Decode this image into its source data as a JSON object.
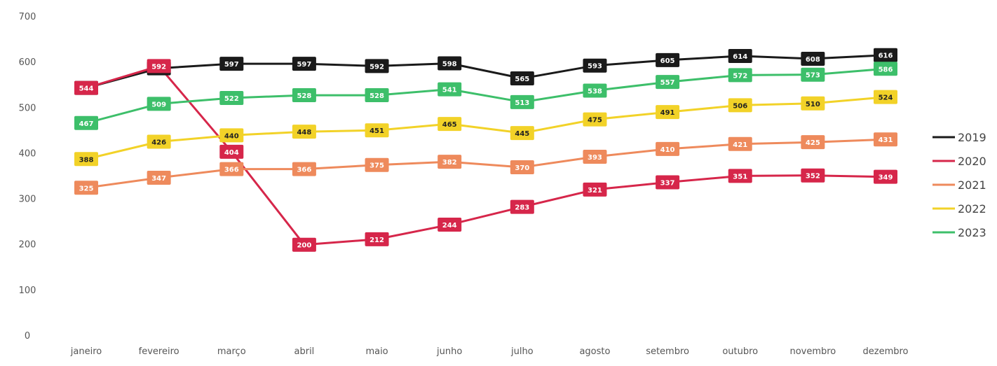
{
  "chart_data": {
    "type": "line",
    "title": "",
    "xlabel": "",
    "ylabel": "",
    "ylim": [
      0,
      700
    ],
    "yticks": [
      0,
      100,
      200,
      300,
      400,
      500,
      600,
      700
    ],
    "grid": false,
    "legend_position": "right",
    "categories": [
      "janeiro",
      "fevereiro",
      "março",
      "abril",
      "maio",
      "junho",
      "julho",
      "agosto",
      "setembro",
      "outubro",
      "novembro",
      "dezembro"
    ],
    "series": [
      {
        "name": "2019",
        "color": "#1a1a1a",
        "label_text_color": "#ffffff",
        "values": [
          544,
          587,
          597,
          597,
          592,
          598,
          565,
          593,
          605,
          614,
          608,
          616
        ]
      },
      {
        "name": "2020",
        "color": "#d6264a",
        "label_text_color": "#ffffff",
        "values": [
          544,
          592,
          404,
          200,
          212,
          244,
          283,
          321,
          337,
          351,
          352,
          349
        ]
      },
      {
        "name": "2021",
        "color": "#ee8a5c",
        "label_text_color": "#ffffff",
        "values": [
          325,
          347,
          366,
          366,
          375,
          382,
          370,
          393,
          410,
          421,
          425,
          431
        ]
      },
      {
        "name": "2022",
        "color": "#f2d228",
        "label_text_color": "#222222",
        "values": [
          388,
          426,
          440,
          448,
          451,
          465,
          445,
          475,
          491,
          506,
          510,
          524
        ]
      },
      {
        "name": "2023",
        "color": "#3dbf6a",
        "label_text_color": "#ffffff",
        "values": [
          467,
          509,
          522,
          528,
          528,
          541,
          513,
          538,
          557,
          572,
          573,
          586
        ]
      }
    ]
  }
}
